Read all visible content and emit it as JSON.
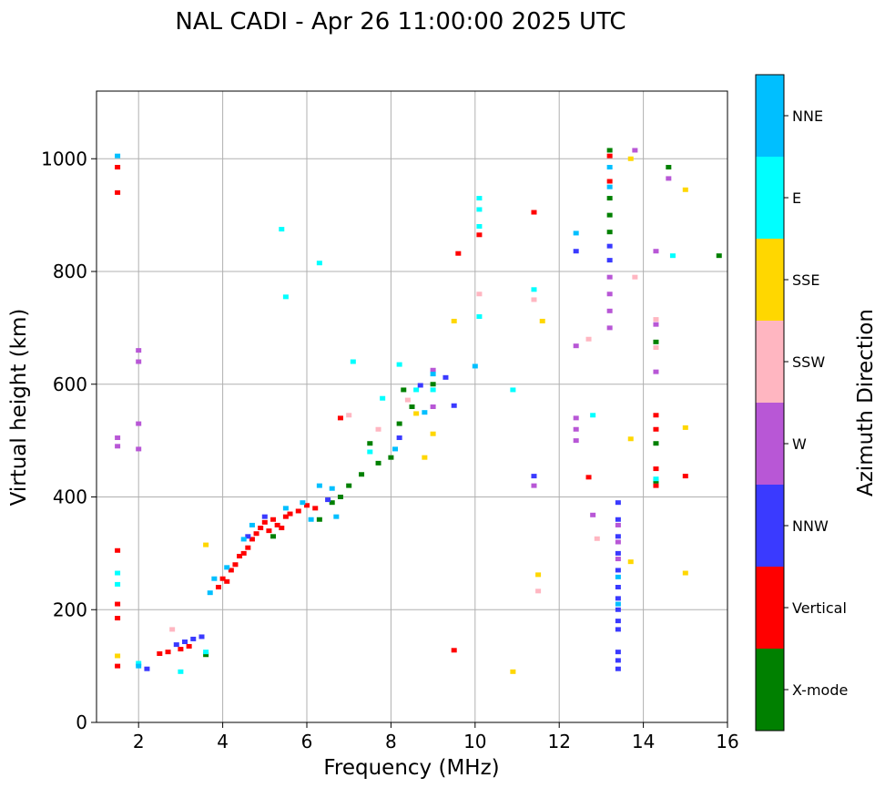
{
  "chart_data": {
    "type": "scatter",
    "title": "NAL CADI - Apr 26 11:00:00 2025 UTC",
    "xlabel": "Frequency (MHz)",
    "ylabel": "Virtual height (km)",
    "xlim": [
      1,
      16
    ],
    "ylim": [
      0,
      1120
    ],
    "xticks": [
      2,
      4,
      6,
      8,
      10,
      12,
      14,
      16
    ],
    "yticks": [
      0,
      200,
      400,
      600,
      800,
      1000
    ],
    "grid": true,
    "colorbar": {
      "label": "Azimuth Direction",
      "categories": [
        {
          "name": "X-mode",
          "color": "#008000"
        },
        {
          "name": "Vertical",
          "color": "#ff0000"
        },
        {
          "name": "NNW",
          "color": "#3a3aff"
        },
        {
          "name": "W",
          "color": "#b857d6"
        },
        {
          "name": "SSW",
          "color": "#ffb6c1"
        },
        {
          "name": "SSE",
          "color": "#ffd700"
        },
        {
          "name": "E",
          "color": "#00ffff"
        },
        {
          "name": "NNE",
          "color": "#00bfff"
        }
      ]
    },
    "series": [
      {
        "name": "Vertical",
        "points": [
          [
            1.5,
            100
          ],
          [
            1.5,
            185
          ],
          [
            1.5,
            210
          ],
          [
            1.5,
            305
          ],
          [
            1.5,
            940
          ],
          [
            1.5,
            985
          ],
          [
            2.5,
            122
          ],
          [
            2.7,
            125
          ],
          [
            3.0,
            130
          ],
          [
            3.2,
            135
          ],
          [
            3.9,
            240
          ],
          [
            4.0,
            255
          ],
          [
            4.1,
            250
          ],
          [
            4.2,
            270
          ],
          [
            4.3,
            280
          ],
          [
            4.4,
            295
          ],
          [
            4.5,
            300
          ],
          [
            4.6,
            310
          ],
          [
            4.7,
            325
          ],
          [
            4.8,
            335
          ],
          [
            4.9,
            345
          ],
          [
            5.0,
            355
          ],
          [
            5.1,
            340
          ],
          [
            5.2,
            360
          ],
          [
            5.3,
            350
          ],
          [
            5.4,
            345
          ],
          [
            5.5,
            365
          ],
          [
            5.6,
            370
          ],
          [
            5.8,
            375
          ],
          [
            6.0,
            385
          ],
          [
            6.2,
            380
          ],
          [
            6.8,
            540
          ],
          [
            9.5,
            128
          ],
          [
            9.6,
            832
          ],
          [
            10.1,
            865
          ],
          [
            11.4,
            905
          ],
          [
            12.7,
            435
          ],
          [
            13.2,
            960
          ],
          [
            13.2,
            1005
          ],
          [
            14.3,
            420
          ],
          [
            14.3,
            450
          ],
          [
            14.3,
            520
          ],
          [
            14.3,
            545
          ],
          [
            15.0,
            437
          ]
        ]
      },
      {
        "name": "X-mode",
        "points": [
          [
            3.6,
            120
          ],
          [
            5.2,
            330
          ],
          [
            6.3,
            360
          ],
          [
            6.6,
            390
          ],
          [
            6.8,
            400
          ],
          [
            7.0,
            420
          ],
          [
            7.3,
            440
          ],
          [
            7.5,
            495
          ],
          [
            7.7,
            460
          ],
          [
            8.0,
            470
          ],
          [
            8.2,
            530
          ],
          [
            8.3,
            590
          ],
          [
            8.5,
            560
          ],
          [
            9.0,
            600
          ],
          [
            13.2,
            870
          ],
          [
            13.2,
            900
          ],
          [
            13.2,
            930
          ],
          [
            13.2,
            1015
          ],
          [
            14.3,
            428
          ],
          [
            14.3,
            495
          ],
          [
            14.3,
            675
          ],
          [
            14.6,
            985
          ],
          [
            15.8,
            828
          ]
        ]
      },
      {
        "name": "NNW",
        "points": [
          [
            2.2,
            95
          ],
          [
            2.9,
            138
          ],
          [
            3.1,
            143
          ],
          [
            3.3,
            148
          ],
          [
            3.5,
            152
          ],
          [
            4.6,
            330
          ],
          [
            5.0,
            365
          ],
          [
            6.5,
            395
          ],
          [
            8.2,
            505
          ],
          [
            8.7,
            598
          ],
          [
            9.3,
            612
          ],
          [
            9.5,
            562
          ],
          [
            11.4,
            437
          ],
          [
            12.4,
            836
          ],
          [
            13.4,
            95
          ],
          [
            13.4,
            110
          ],
          [
            13.4,
            125
          ],
          [
            13.4,
            165
          ],
          [
            13.4,
            180
          ],
          [
            13.4,
            200
          ],
          [
            13.4,
            220
          ],
          [
            13.4,
            240
          ],
          [
            13.4,
            270
          ],
          [
            13.4,
            300
          ],
          [
            13.4,
            330
          ],
          [
            13.4,
            360
          ],
          [
            13.4,
            390
          ],
          [
            13.2,
            820
          ],
          [
            13.2,
            845
          ]
        ]
      },
      {
        "name": "W",
        "points": [
          [
            1.5,
            490
          ],
          [
            1.5,
            505
          ],
          [
            2.0,
            640
          ],
          [
            2.0,
            660
          ],
          [
            2.0,
            485
          ],
          [
            2.0,
            530
          ],
          [
            9.0,
            560
          ],
          [
            9.0,
            625
          ],
          [
            11.4,
            420
          ],
          [
            12.4,
            500
          ],
          [
            12.4,
            520
          ],
          [
            12.4,
            540
          ],
          [
            12.4,
            668
          ],
          [
            12.8,
            368
          ],
          [
            13.2,
            700
          ],
          [
            13.2,
            730
          ],
          [
            13.2,
            760
          ],
          [
            13.2,
            790
          ],
          [
            13.4,
            290
          ],
          [
            13.4,
            320
          ],
          [
            13.4,
            350
          ],
          [
            13.8,
            1015
          ],
          [
            14.3,
            622
          ],
          [
            14.3,
            706
          ],
          [
            14.3,
            836
          ],
          [
            14.6,
            965
          ]
        ]
      },
      {
        "name": "SSW",
        "points": [
          [
            2.8,
            165
          ],
          [
            7.0,
            545
          ],
          [
            7.7,
            520
          ],
          [
            8.4,
            572
          ],
          [
            10.1,
            760
          ],
          [
            11.5,
            233
          ],
          [
            12.7,
            680
          ],
          [
            12.9,
            326
          ],
          [
            13.8,
            790
          ],
          [
            14.3,
            665
          ],
          [
            14.3,
            715
          ],
          [
            11.4,
            750
          ]
        ]
      },
      {
        "name": "SSE",
        "points": [
          [
            1.5,
            118
          ],
          [
            3.6,
            315
          ],
          [
            8.6,
            548
          ],
          [
            8.8,
            470
          ],
          [
            9.0,
            512
          ],
          [
            9.5,
            712
          ],
          [
            10.9,
            90
          ],
          [
            11.5,
            262
          ],
          [
            11.6,
            712
          ],
          [
            13.7,
            285
          ],
          [
            13.7,
            503
          ],
          [
            15.0,
            265
          ],
          [
            15.0,
            523
          ],
          [
            15.0,
            945
          ],
          [
            13.7,
            1000
          ]
        ]
      },
      {
        "name": "E",
        "points": [
          [
            1.5,
            245
          ],
          [
            1.5,
            265
          ],
          [
            2.0,
            105
          ],
          [
            3.0,
            90
          ],
          [
            3.6,
            125
          ],
          [
            5.5,
            755
          ],
          [
            5.4,
            875
          ],
          [
            6.3,
            815
          ],
          [
            7.1,
            640
          ],
          [
            7.5,
            480
          ],
          [
            7.8,
            575
          ],
          [
            8.2,
            635
          ],
          [
            8.6,
            590
          ],
          [
            9.0,
            590
          ],
          [
            10.1,
            720
          ],
          [
            10.1,
            880
          ],
          [
            10.1,
            910
          ],
          [
            10.1,
            930
          ],
          [
            10.9,
            590
          ],
          [
            11.4,
            768
          ],
          [
            12.8,
            545
          ],
          [
            14.3,
            432
          ],
          [
            14.7,
            828
          ]
        ]
      },
      {
        "name": "NNE",
        "points": [
          [
            1.5,
            1005
          ],
          [
            2.0,
            100
          ],
          [
            3.7,
            230
          ],
          [
            3.8,
            255
          ],
          [
            4.1,
            275
          ],
          [
            4.5,
            325
          ],
          [
            4.7,
            350
          ],
          [
            5.5,
            380
          ],
          [
            5.9,
            390
          ],
          [
            6.1,
            360
          ],
          [
            6.3,
            420
          ],
          [
            6.7,
            365
          ],
          [
            6.6,
            415
          ],
          [
            8.1,
            485
          ],
          [
            8.8,
            550
          ],
          [
            9.0,
            618
          ],
          [
            10.0,
            632
          ],
          [
            12.4,
            868
          ],
          [
            13.2,
            950
          ],
          [
            13.2,
            985
          ],
          [
            13.4,
            210
          ],
          [
            13.4,
            258
          ]
        ]
      }
    ]
  }
}
